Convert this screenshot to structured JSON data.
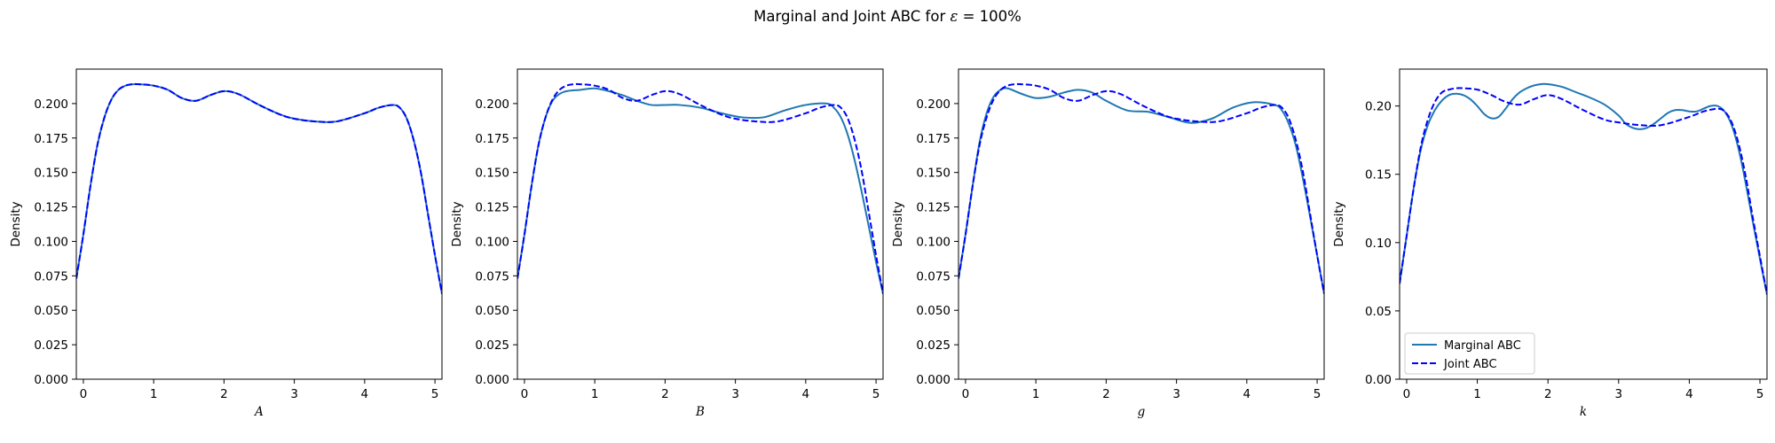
{
  "figure": {
    "title_prefix": "Marginal and Joint ABC for ",
    "title_symbol": "ε",
    "title_suffix": " =  100%"
  },
  "chart_data": [
    {
      "type": "line",
      "xlabel": "A",
      "ylabel": "Density",
      "xlim": [
        -0.1,
        5.1
      ],
      "ylim": [
        0,
        0.225
      ],
      "xticks": [
        0,
        1,
        2,
        3,
        4,
        5
      ],
      "yticks": [
        0.0,
        0.025,
        0.05,
        0.075,
        0.1,
        0.125,
        0.15,
        0.175,
        0.2
      ],
      "ytick_labels": [
        "0.000",
        "0.025",
        "0.050",
        "0.075",
        "0.100",
        "0.125",
        "0.150",
        "0.175",
        "0.200"
      ],
      "legend": null,
      "series": [
        {
          "name": "Marginal ABC",
          "color": "#1f77b4",
          "style": "solid",
          "x": [
            -0.1,
            0.0,
            0.1,
            0.2,
            0.3,
            0.4,
            0.5,
            0.6,
            0.7,
            0.8,
            1.0,
            1.2,
            1.4,
            1.6,
            1.8,
            2.0,
            2.2,
            2.5,
            2.8,
            3.0,
            3.3,
            3.6,
            4.0,
            4.2,
            4.4,
            4.5,
            4.6,
            4.7,
            4.8,
            4.9,
            5.0,
            5.1
          ],
          "y": [
            0.073,
            0.105,
            0.14,
            0.17,
            0.19,
            0.203,
            0.21,
            0.213,
            0.214,
            0.214,
            0.213,
            0.21,
            0.204,
            0.202,
            0.206,
            0.209,
            0.207,
            0.199,
            0.192,
            0.189,
            0.187,
            0.187,
            0.193,
            0.197,
            0.199,
            0.197,
            0.189,
            0.173,
            0.15,
            0.12,
            0.09,
            0.062
          ]
        },
        {
          "name": "Joint ABC",
          "color": "#0000ff",
          "style": "dashed",
          "x": [
            -0.1,
            0.0,
            0.1,
            0.2,
            0.3,
            0.4,
            0.5,
            0.6,
            0.7,
            0.8,
            1.0,
            1.2,
            1.4,
            1.6,
            1.8,
            2.0,
            2.2,
            2.5,
            2.8,
            3.0,
            3.3,
            3.6,
            4.0,
            4.2,
            4.4,
            4.5,
            4.6,
            4.7,
            4.8,
            4.9,
            5.0,
            5.1
          ],
          "y": [
            0.073,
            0.105,
            0.14,
            0.17,
            0.19,
            0.203,
            0.21,
            0.213,
            0.214,
            0.214,
            0.213,
            0.21,
            0.204,
            0.202,
            0.206,
            0.209,
            0.207,
            0.199,
            0.192,
            0.189,
            0.187,
            0.187,
            0.193,
            0.197,
            0.199,
            0.197,
            0.189,
            0.173,
            0.15,
            0.12,
            0.09,
            0.062
          ]
        }
      ]
    },
    {
      "type": "line",
      "xlabel": "B",
      "ylabel": "Density",
      "xlim": [
        -0.1,
        5.1
      ],
      "ylim": [
        0,
        0.225
      ],
      "xticks": [
        0,
        1,
        2,
        3,
        4,
        5
      ],
      "yticks": [
        0.0,
        0.025,
        0.05,
        0.075,
        0.1,
        0.125,
        0.15,
        0.175,
        0.2
      ],
      "ytick_labels": [
        "0.000",
        "0.025",
        "0.050",
        "0.075",
        "0.100",
        "0.125",
        "0.150",
        "0.175",
        "0.200"
      ],
      "legend": null,
      "series": [
        {
          "name": "Marginal ABC",
          "color": "#1f77b4",
          "style": "solid",
          "x": [
            -0.1,
            0.0,
            0.1,
            0.2,
            0.3,
            0.4,
            0.5,
            0.6,
            0.8,
            1.0,
            1.2,
            1.4,
            1.6,
            1.8,
            2.0,
            2.2,
            2.5,
            2.8,
            3.1,
            3.4,
            3.7,
            4.0,
            4.3,
            4.4,
            4.5,
            4.6,
            4.7,
            4.8,
            4.9,
            5.0,
            5.1
          ],
          "y": [
            0.073,
            0.105,
            0.14,
            0.17,
            0.19,
            0.202,
            0.207,
            0.209,
            0.21,
            0.211,
            0.209,
            0.206,
            0.202,
            0.199,
            0.199,
            0.199,
            0.197,
            0.193,
            0.19,
            0.19,
            0.195,
            0.199,
            0.2,
            0.197,
            0.19,
            0.177,
            0.158,
            0.135,
            0.11,
            0.085,
            0.062
          ]
        },
        {
          "name": "Joint ABC",
          "color": "#0000ff",
          "style": "dashed",
          "x": [
            -0.1,
            0.0,
            0.1,
            0.2,
            0.3,
            0.4,
            0.5,
            0.6,
            0.7,
            0.8,
            1.0,
            1.2,
            1.4,
            1.6,
            1.8,
            2.0,
            2.2,
            2.5,
            2.8,
            3.0,
            3.3,
            3.6,
            4.0,
            4.2,
            4.4,
            4.5,
            4.6,
            4.7,
            4.8,
            4.9,
            5.0,
            5.1
          ],
          "y": [
            0.073,
            0.105,
            0.14,
            0.17,
            0.19,
            0.203,
            0.21,
            0.213,
            0.214,
            0.214,
            0.213,
            0.21,
            0.204,
            0.202,
            0.206,
            0.209,
            0.207,
            0.199,
            0.192,
            0.189,
            0.187,
            0.187,
            0.193,
            0.197,
            0.199,
            0.197,
            0.189,
            0.173,
            0.15,
            0.12,
            0.09,
            0.062
          ]
        }
      ]
    },
    {
      "type": "line",
      "xlabel": "g",
      "ylabel": "Density",
      "xlim": [
        -0.1,
        5.1
      ],
      "ylim": [
        0,
        0.225
      ],
      "xticks": [
        0,
        1,
        2,
        3,
        4,
        5
      ],
      "yticks": [
        0.0,
        0.025,
        0.05,
        0.075,
        0.1,
        0.125,
        0.15,
        0.175,
        0.2
      ],
      "ytick_labels": [
        "0.000",
        "0.025",
        "0.050",
        "0.075",
        "0.100",
        "0.125",
        "0.150",
        "0.175",
        "0.200"
      ],
      "legend": null,
      "series": [
        {
          "name": "Marginal ABC",
          "color": "#1f77b4",
          "style": "solid",
          "x": [
            -0.1,
            0.0,
            0.1,
            0.2,
            0.3,
            0.4,
            0.5,
            0.6,
            0.8,
            1.0,
            1.2,
            1.4,
            1.6,
            1.8,
            2.0,
            2.3,
            2.6,
            2.9,
            3.2,
            3.5,
            3.8,
            4.1,
            4.4,
            4.5,
            4.6,
            4.7,
            4.8,
            4.9,
            5.0,
            5.1
          ],
          "y": [
            0.073,
            0.105,
            0.14,
            0.172,
            0.193,
            0.205,
            0.21,
            0.211,
            0.207,
            0.204,
            0.205,
            0.208,
            0.21,
            0.208,
            0.202,
            0.195,
            0.194,
            0.19,
            0.186,
            0.189,
            0.197,
            0.201,
            0.199,
            0.195,
            0.185,
            0.169,
            0.145,
            0.118,
            0.09,
            0.062
          ]
        },
        {
          "name": "Joint ABC",
          "color": "#0000ff",
          "style": "dashed",
          "x": [
            -0.1,
            0.0,
            0.1,
            0.2,
            0.3,
            0.4,
            0.5,
            0.6,
            0.7,
            0.8,
            1.0,
            1.2,
            1.4,
            1.6,
            1.8,
            2.0,
            2.2,
            2.5,
            2.8,
            3.0,
            3.3,
            3.6,
            4.0,
            4.2,
            4.4,
            4.5,
            4.6,
            4.7,
            4.8,
            4.9,
            5.0,
            5.1
          ],
          "y": [
            0.073,
            0.105,
            0.14,
            0.17,
            0.19,
            0.203,
            0.21,
            0.213,
            0.214,
            0.214,
            0.213,
            0.21,
            0.204,
            0.202,
            0.206,
            0.209,
            0.207,
            0.199,
            0.192,
            0.189,
            0.187,
            0.187,
            0.193,
            0.197,
            0.199,
            0.197,
            0.189,
            0.173,
            0.15,
            0.12,
            0.09,
            0.062
          ]
        }
      ]
    },
    {
      "type": "line",
      "xlabel": "k",
      "ylabel": "Density",
      "xlim": [
        -0.1,
        5.1
      ],
      "ylim": [
        0,
        0.227
      ],
      "xticks": [
        0,
        1,
        2,
        3,
        4,
        5
      ],
      "yticks": [
        0.0,
        0.05,
        0.1,
        0.15,
        0.2
      ],
      "ytick_labels": [
        "0.00",
        "0.05",
        "0.10",
        "0.15",
        "0.20"
      ],
      "legend": "lower left",
      "series": [
        {
          "name": "Marginal ABC",
          "color": "#1f77b4",
          "style": "solid",
          "x": [
            -0.1,
            0.0,
            0.1,
            0.2,
            0.3,
            0.4,
            0.5,
            0.6,
            0.7,
            0.8,
            0.9,
            1.0,
            1.1,
            1.2,
            1.3,
            1.4,
            1.5,
            1.6,
            1.7,
            1.8,
            1.9,
            2.0,
            2.2,
            2.4,
            2.6,
            2.8,
            3.0,
            3.1,
            3.2,
            3.3,
            3.4,
            3.5,
            3.6,
            3.7,
            3.8,
            3.9,
            4.0,
            4.1,
            4.2,
            4.3,
            4.4,
            4.5,
            4.6,
            4.7,
            4.8,
            4.9,
            5.0,
            5.1
          ],
          "y": [
            0.07,
            0.105,
            0.14,
            0.168,
            0.186,
            0.197,
            0.204,
            0.208,
            0.209,
            0.208,
            0.205,
            0.2,
            0.194,
            0.191,
            0.192,
            0.198,
            0.205,
            0.21,
            0.213,
            0.215,
            0.216,
            0.216,
            0.214,
            0.21,
            0.206,
            0.201,
            0.193,
            0.187,
            0.184,
            0.183,
            0.184,
            0.187,
            0.191,
            0.195,
            0.197,
            0.197,
            0.196,
            0.196,
            0.198,
            0.2,
            0.2,
            0.196,
            0.186,
            0.168,
            0.143,
            0.115,
            0.088,
            0.062
          ]
        },
        {
          "name": "Joint ABC",
          "color": "#0000ff",
          "style": "dashed",
          "x": [
            -0.1,
            0.0,
            0.1,
            0.2,
            0.3,
            0.4,
            0.5,
            0.6,
            0.7,
            0.8,
            1.0,
            1.2,
            1.4,
            1.6,
            1.8,
            2.0,
            2.2,
            2.5,
            2.8,
            3.0,
            3.3,
            3.6,
            4.0,
            4.2,
            4.4,
            4.5,
            4.6,
            4.7,
            4.8,
            4.9,
            5.0,
            5.1
          ],
          "y": [
            0.07,
            0.105,
            0.14,
            0.17,
            0.19,
            0.203,
            0.21,
            0.212,
            0.213,
            0.213,
            0.212,
            0.208,
            0.203,
            0.201,
            0.205,
            0.208,
            0.205,
            0.197,
            0.19,
            0.188,
            0.186,
            0.186,
            0.192,
            0.196,
            0.198,
            0.196,
            0.188,
            0.172,
            0.148,
            0.118,
            0.09,
            0.062
          ]
        }
      ]
    }
  ]
}
